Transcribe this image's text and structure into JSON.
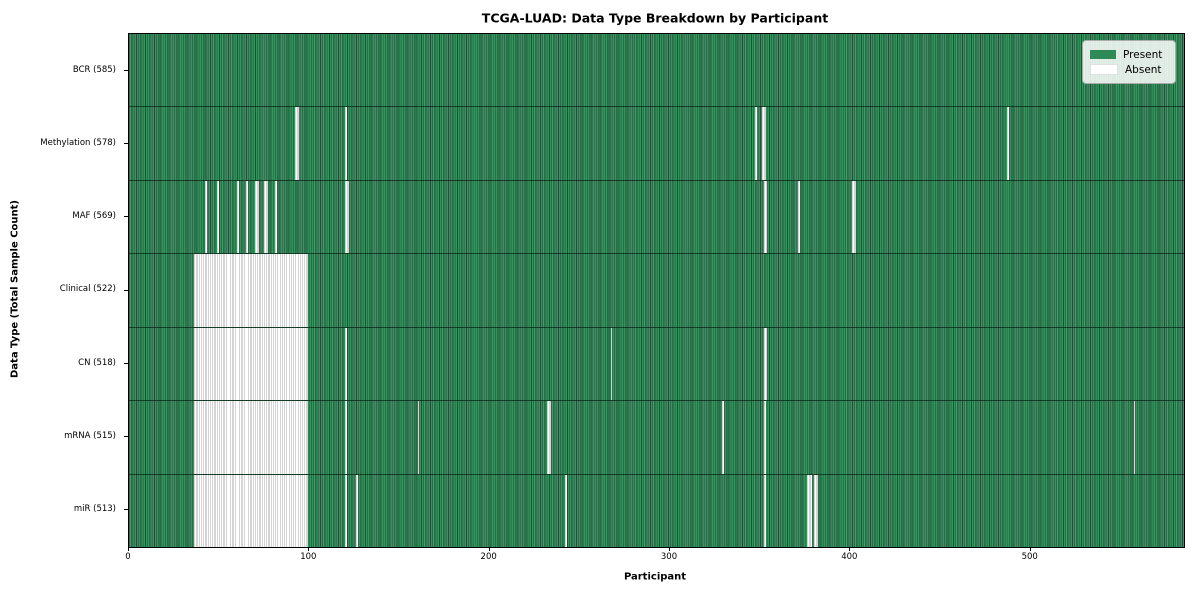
{
  "figure": {
    "title": "TCGA-LUAD: Data Type Breakdown by Participant",
    "xlabel": "Participant",
    "ylabel": "Data Type (Total Sample Count)"
  },
  "legend": {
    "items": [
      {
        "name": "present",
        "label": "Present",
        "color": "#2e8b57"
      },
      {
        "name": "absent",
        "label": "Absent",
        "color": "#ffffff"
      }
    ]
  },
  "chart_data": {
    "type": "heatmap",
    "title": "TCGA-LUAD: Data Type Breakdown by Participant",
    "xlabel": "Participant",
    "ylabel": "Data Type (Total Sample Count)",
    "x_ticks": [
      0,
      100,
      200,
      300,
      400,
      500
    ],
    "x_range": [
      0,
      585
    ],
    "n_participants": 585,
    "cell_states": {
      "present_color": "#2e8b57",
      "absent_color": "#ffffff"
    },
    "legend_position": "upper right",
    "grid": false,
    "rows": [
      {
        "data_type": "BCR",
        "label": "BCR (585)",
        "present_count": 585,
        "absent_ranges": []
      },
      {
        "data_type": "Methylation",
        "label": "Methylation (578)",
        "present_count": 578,
        "absent_ranges": [
          [
            92,
            93
          ],
          [
            120,
            120
          ],
          [
            347,
            347
          ],
          [
            351,
            352
          ],
          [
            487,
            487
          ]
        ]
      },
      {
        "data_type": "MAF",
        "label": "MAF (569)",
        "present_count": 569,
        "absent_ranges": [
          [
            42,
            42
          ],
          [
            49,
            49
          ],
          [
            60,
            60
          ],
          [
            65,
            65
          ],
          [
            70,
            71
          ],
          [
            75,
            76
          ],
          [
            81,
            81
          ],
          [
            120,
            121
          ],
          [
            352,
            353
          ],
          [
            371,
            371
          ],
          [
            401,
            402
          ]
        ]
      },
      {
        "data_type": "Clinical",
        "label": "Clinical (522)",
        "present_count": 522,
        "absent_ranges": [
          [
            36,
            98
          ]
        ]
      },
      {
        "data_type": "CN",
        "label": "CN (518)",
        "present_count": 518,
        "absent_ranges": [
          [
            36,
            98
          ],
          [
            120,
            120
          ],
          [
            267,
            267
          ],
          [
            352,
            353
          ]
        ]
      },
      {
        "data_type": "mRNA",
        "label": "mRNA (515)",
        "present_count": 515,
        "absent_ranges": [
          [
            36,
            98
          ],
          [
            120,
            120
          ],
          [
            160,
            160
          ],
          [
            232,
            233
          ],
          [
            329,
            329
          ],
          [
            352,
            352
          ],
          [
            557,
            557
          ]
        ]
      },
      {
        "data_type": "miR",
        "label": "miR (513)",
        "present_count": 513,
        "absent_ranges": [
          [
            36,
            98
          ],
          [
            120,
            120
          ],
          [
            126,
            126
          ],
          [
            242,
            242
          ],
          [
            352,
            352
          ],
          [
            376,
            378
          ],
          [
            380,
            381
          ]
        ]
      }
    ]
  }
}
